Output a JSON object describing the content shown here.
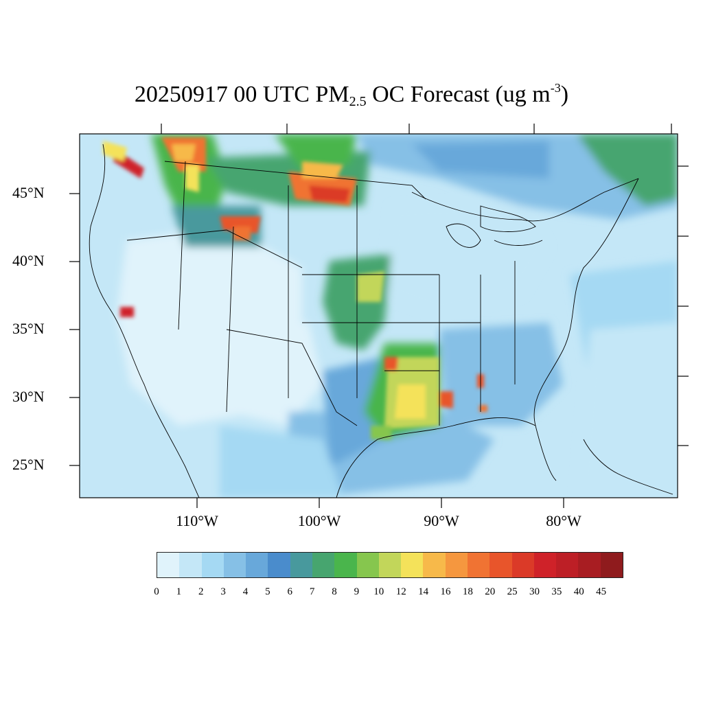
{
  "title": {
    "prefix": "20250917 00 UTC PM",
    "subscript": "2.5",
    "middle": " OC Forecast (ug m",
    "superscript": "-3",
    "suffix": ")"
  },
  "map": {
    "lat_labels": [
      "45°N",
      "40°N",
      "35°N",
      "30°N",
      "25°N"
    ],
    "lon_labels": [
      "110°W",
      "100°W",
      "90°W",
      "80°W"
    ]
  },
  "colorbar": {
    "labels": [
      "0",
      "1",
      "2",
      "3",
      "4",
      "5",
      "6",
      "7",
      "8",
      "9",
      "10",
      "12",
      "14",
      "16",
      "18",
      "20",
      "25",
      "30",
      "35",
      "40",
      "45"
    ],
    "colors": [
      "#e0f3fb",
      "#c4e7f7",
      "#a5d9f3",
      "#86c0e6",
      "#68a8da",
      "#4a8ccc",
      "#48999d",
      "#47a56f",
      "#4ab54c",
      "#86c64e",
      "#c2d65a",
      "#f4e25a",
      "#f7b94a",
      "#f5973f",
      "#f07333",
      "#e8552b",
      "#db3a28",
      "#cf2229",
      "#bd1f26",
      "#a81d22",
      "#8f1b1d"
    ]
  }
}
